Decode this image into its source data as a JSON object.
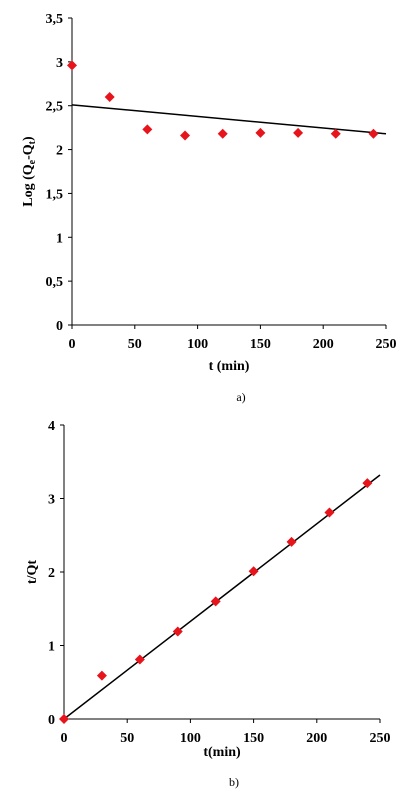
{
  "chart_data": [
    {
      "type": "scatter",
      "caption": "a)",
      "xlabel": "t (min)",
      "ylabel": "Log (Qe-Qt)",
      "ylabel_parts": {
        "pre": "Log (Q",
        "sub1": "e",
        "mid": "-Q",
        "sub2": "t",
        "post": ")"
      },
      "xlim": [
        0,
        250
      ],
      "ylim": [
        0,
        3.5
      ],
      "xticks": [
        "0",
        "50",
        "100",
        "150",
        "200",
        "250"
      ],
      "xtick_values": [
        0,
        50,
        100,
        150,
        200,
        250
      ],
      "yticks": [
        "0",
        "0,5",
        "1",
        "1,5",
        "2",
        "2,5",
        "3",
        "3,5"
      ],
      "ytick_values": [
        0,
        0.5,
        1,
        1.5,
        2,
        2.5,
        3,
        3.5
      ],
      "grid": false,
      "marker_color": "#e8141b",
      "series": [
        {
          "x": [
            0,
            30,
            60,
            90,
            120,
            150,
            180,
            210,
            240
          ],
          "y": [
            2.96,
            2.6,
            2.23,
            2.16,
            2.18,
            2.19,
            2.19,
            2.18,
            2.18
          ]
        }
      ],
      "fit_line": {
        "x": [
          0,
          250
        ],
        "y": [
          2.51,
          2.18
        ]
      }
    },
    {
      "type": "scatter",
      "caption": "b)",
      "xlabel": "t(min)",
      "ylabel": "t/Qt",
      "xlim": [
        0,
        250
      ],
      "ylim": [
        0,
        4
      ],
      "xticks": [
        "0",
        "50",
        "100",
        "150",
        "200",
        "250"
      ],
      "xtick_values": [
        0,
        50,
        100,
        150,
        200,
        250
      ],
      "yticks": [
        "0",
        "1",
        "2",
        "3",
        "4"
      ],
      "ytick_values": [
        0,
        1,
        2,
        3,
        4
      ],
      "grid": false,
      "marker_color": "#e8141b",
      "series": [
        {
          "x": [
            0,
            30,
            60,
            90,
            120,
            150,
            180,
            210,
            240
          ],
          "y": [
            0,
            0.59,
            0.81,
            1.19,
            1.6,
            2.01,
            2.41,
            2.81,
            3.21
          ]
        }
      ],
      "fit_line": {
        "x": [
          0,
          250
        ],
        "y": [
          0,
          3.32
        ]
      }
    }
  ]
}
